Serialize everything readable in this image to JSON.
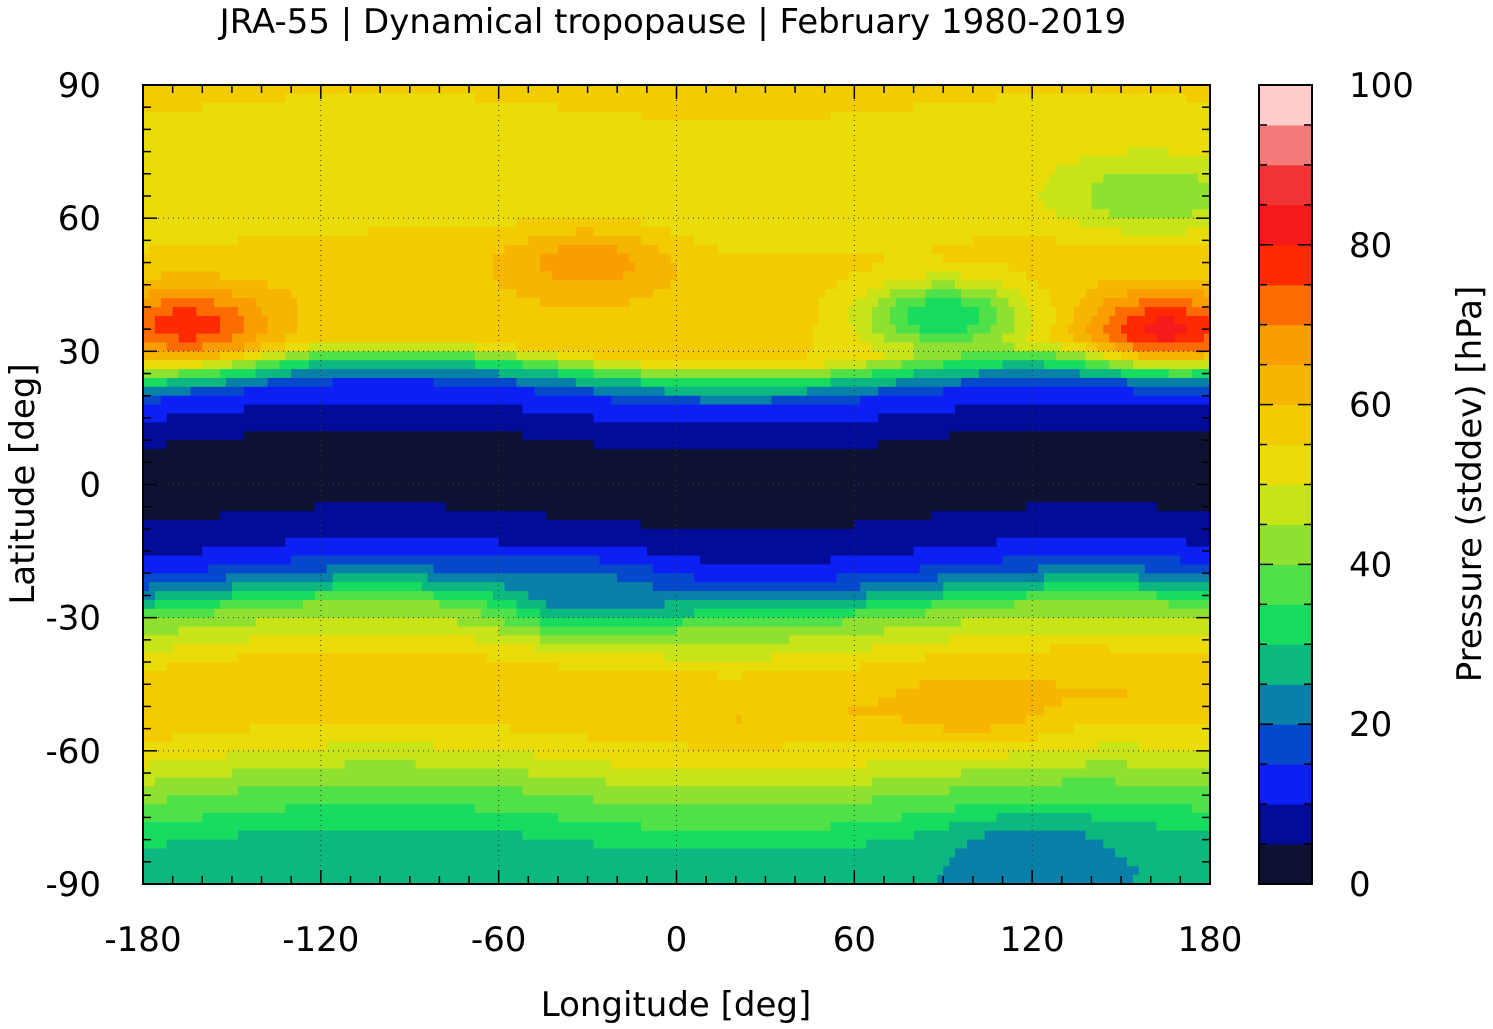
{
  "chart_data": {
    "type": "heatmap",
    "title": "JRA-55 | Dynamical tropopause | February 1980-2019",
    "xlabel": "Longitude [deg]",
    "ylabel": "Latitude [deg]",
    "xlim": [
      -180,
      180
    ],
    "ylim": [
      -90,
      90
    ],
    "x_ticks": [
      "-180",
      "-120",
      "-60",
      "0",
      "60",
      "120",
      "180"
    ],
    "y_ticks": [
      "90",
      "60",
      "30",
      "0",
      "-30",
      "-60",
      "-90"
    ],
    "grid": true,
    "colorbar": {
      "label": "Pressure (stddev) [hPa]",
      "range": [
        0,
        100
      ],
      "ticks": [
        "0",
        "20",
        "40",
        "60",
        "80",
        "100"
      ],
      "levels": [
        0,
        5,
        10,
        15,
        20,
        25,
        30,
        35,
        40,
        45,
        50,
        55,
        60,
        65,
        70,
        75,
        80,
        85,
        90,
        95,
        100
      ],
      "colors": [
        "#0e1232",
        "#020c98",
        "#0c20f4",
        "#0648cc",
        "#0880a8",
        "#0cb880",
        "#18dc60",
        "#50e048",
        "#90e030",
        "#c8e418",
        "#eadc08",
        "#f2cc00",
        "#f6b600",
        "#fa9e00",
        "#fc6c00",
        "#fe2a00",
        "#f81a1a",
        "#f03434",
        "#f47a7a",
        "#ffcccc"
      ]
    },
    "zonal_profile": {
      "latitude": [
        -90,
        -80,
        -70,
        -60,
        -50,
        -40,
        -30,
        -25,
        -20,
        -15,
        -10,
        -5,
        0,
        5,
        10,
        15,
        20,
        25,
        30,
        40,
        50,
        60,
        70,
        80,
        90
      ],
      "value": [
        26,
        30,
        40,
        52,
        60,
        55,
        42,
        28,
        16,
        10,
        6,
        4,
        3,
        3,
        5,
        9,
        14,
        30,
        55,
        58,
        57,
        52,
        52,
        54,
        56
      ]
    },
    "features": [
      {
        "lon": -165,
        "lat": 36,
        "value": 78
      },
      {
        "lon": 165,
        "lat": 35,
        "value": 82
      },
      {
        "lon": -30,
        "lat": 50,
        "value": 68
      },
      {
        "lon": 90,
        "lat": 38,
        "value": 30
      },
      {
        "lon": 120,
        "lat": -84,
        "value": 20
      },
      {
        "lon": -30,
        "lat": -25,
        "value": 22
      },
      {
        "lon": 100,
        "lat": -50,
        "value": 63
      },
      {
        "lon": 160,
        "lat": 65,
        "value": 40
      }
    ]
  }
}
